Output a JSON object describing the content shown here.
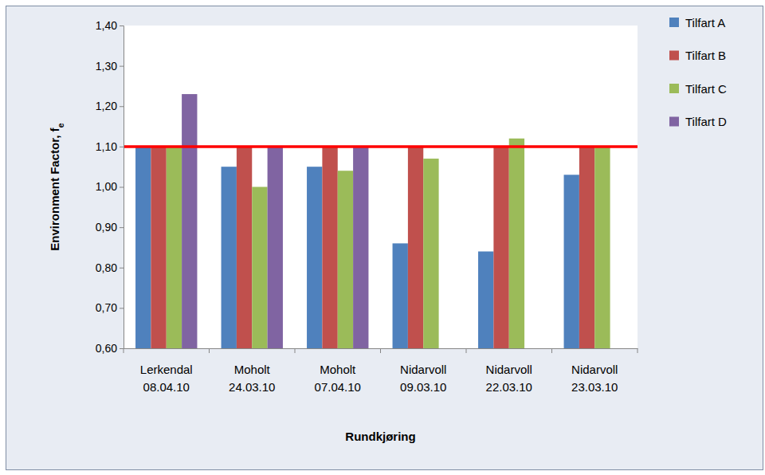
{
  "chart_data": {
    "type": "bar",
    "y_label": "Environment Factor, f",
    "y_label_subscript": "e",
    "x_label": "Rundkjøring",
    "categories": [
      "Lerkendal\n08.04.10",
      "Moholt\n24.03.10",
      "Moholt\n07.04.10",
      "Nidarvoll\n09.03.10",
      "Nidarvoll\n22.03.10",
      "Nidarvoll\n23.03.10"
    ],
    "series": [
      {
        "name": "Tilfart A",
        "color": "#4f81bd",
        "values": [
          1.1,
          1.05,
          1.05,
          0.86,
          0.84,
          1.03
        ]
      },
      {
        "name": "Tilfart B",
        "color": "#c0504d",
        "values": [
          1.1,
          1.1,
          1.1,
          1.1,
          1.1,
          1.1
        ]
      },
      {
        "name": "Tilfart C",
        "color": "#9bbb59",
        "values": [
          1.1,
          1.0,
          1.04,
          1.07,
          1.12,
          1.1
        ]
      },
      {
        "name": "Tilfart D",
        "color": "#8064a2",
        "values": [
          1.23,
          1.1,
          1.1,
          null,
          null,
          null
        ]
      }
    ],
    "threshold": 1.1,
    "threshold_color": "#ff0000",
    "ylim": [
      0.6,
      1.4
    ],
    "yticks": [
      {
        "value": 0.6,
        "label": "0,60"
      },
      {
        "value": 0.7,
        "label": "0,70"
      },
      {
        "value": 0.8,
        "label": "0,80"
      },
      {
        "value": 0.9,
        "label": "0,90"
      },
      {
        "value": 1.0,
        "label": "1,00"
      },
      {
        "value": 1.1,
        "label": "1,10"
      },
      {
        "value": 1.2,
        "label": "1,20"
      },
      {
        "value": 1.3,
        "label": "1,30"
      },
      {
        "value": 1.4,
        "label": "1,40"
      }
    ],
    "grid": false,
    "legend": "upper right"
  }
}
